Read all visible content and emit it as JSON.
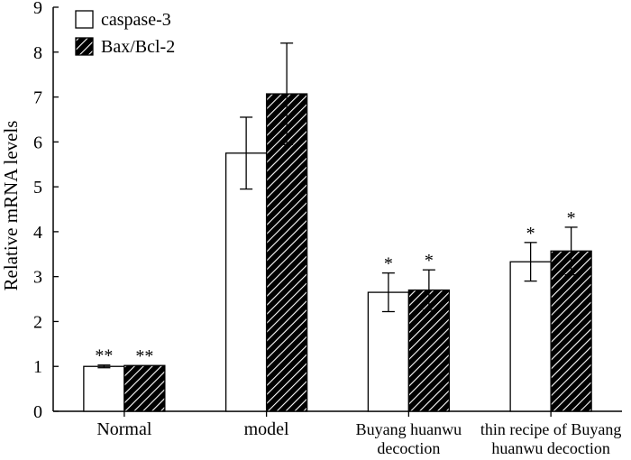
{
  "chart_data": {
    "type": "bar",
    "title": "",
    "xlabel": "",
    "ylabel": "Relative mRNA levels",
    "ylim": [
      0,
      9
    ],
    "yticks": [
      0,
      1,
      2,
      3,
      4,
      5,
      6,
      7,
      8,
      9
    ],
    "categories": [
      [
        "Normal"
      ],
      [
        "model"
      ],
      [
        "Buyang huanwu",
        "decoction"
      ],
      [
        "thin recipe of Buyang",
        "huanwu decoction"
      ]
    ],
    "legend_position": "top-left",
    "series": [
      {
        "name": "caspase-3",
        "fill": "white",
        "values": [
          1.0,
          5.75,
          2.65,
          3.33
        ],
        "errors": [
          0.03,
          0.8,
          0.43,
          0.43
        ],
        "annotations": [
          "**",
          "",
          "*",
          "*"
        ]
      },
      {
        "name": "Bax/Bcl-2",
        "fill": "hatched",
        "values": [
          1.02,
          7.07,
          2.7,
          3.57
        ],
        "errors": [
          0.0,
          1.13,
          0.45,
          0.53
        ],
        "annotations": [
          "**",
          "",
          "*",
          "*"
        ]
      }
    ]
  },
  "colors": {
    "axis": "#000000",
    "bar_fill": "#ffffff",
    "hatch": "#000000"
  }
}
